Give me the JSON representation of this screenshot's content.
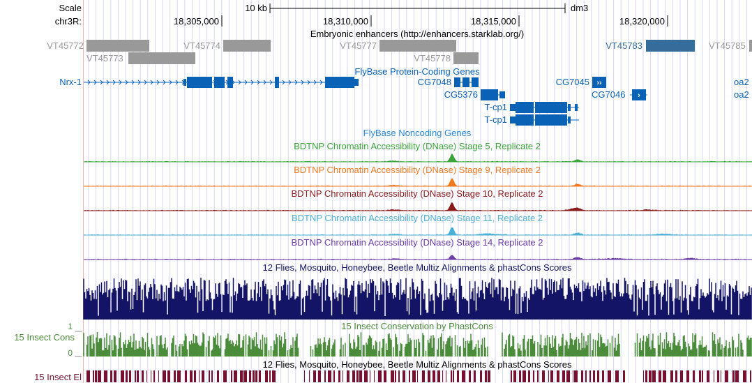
{
  "ruler": {
    "scale_label": "Scale",
    "scale_value": "10 kb",
    "assembly": "dm3",
    "chrom_label": "chr3R:",
    "positions": [
      "18,305,000",
      "18,310,000",
      "18,315,000",
      "18,320,000"
    ]
  },
  "colors": {
    "grid": "#d6d6f5",
    "left_line": "#f4b6b6",
    "enhancer_gray": "#999999",
    "enhancer_blue": "#346c9c",
    "gene_blue": "#0a62b7",
    "noncoding_blue": "#2a8ad6",
    "stage5": "#3aa43a",
    "stage9": "#f07a20",
    "stage10": "#8b1a1a",
    "stage11": "#4cb0d6",
    "stage14": "#6b3ca6",
    "multiz": "#141466",
    "phastcons": "#4a8c3a",
    "elements": "#7a1030"
  },
  "tracks": {
    "enhancers": {
      "title": "Embryonic enhancers (http://enhancers.starklab.org/)",
      "items": [
        {
          "label": "VT45772"
        },
        {
          "label": "VT45773"
        },
        {
          "label": "VT45774"
        },
        {
          "label": "VT45777"
        },
        {
          "label": "VT45778"
        },
        {
          "label": "VT45783"
        },
        {
          "label": "VT45785"
        }
      ]
    },
    "genes": {
      "title": "FlyBase Protein-Coding Genes",
      "items": [
        {
          "label": "Nrx-1"
        },
        {
          "label": "CG7048"
        },
        {
          "label": "CG5376"
        },
        {
          "label": "CG7045"
        },
        {
          "label": "CG7046"
        },
        {
          "label": "T-cp1"
        },
        {
          "label": "T-cp1"
        },
        {
          "label": "oa2"
        },
        {
          "label": "oa2"
        }
      ]
    },
    "noncoding": {
      "title": "FlyBase Noncoding Genes"
    },
    "dnase": [
      {
        "title": "BDTNP Chromatin Accessibility (DNase) Stage 5, Replicate 2",
        "color_key": "stage5"
      },
      {
        "title": "BDTNP Chromatin Accessibility (DNase) Stage 9, Replicate 2",
        "color_key": "stage9"
      },
      {
        "title": "BDTNP Chromatin Accessibility (DNase) Stage 10, Replicate 2",
        "color_key": "stage10"
      },
      {
        "title": "BDTNP Chromatin Accessibility (DNase) Stage 11, Replicate 2",
        "color_key": "stage11"
      },
      {
        "title": "BDTNP Chromatin Accessibility (DNase) Stage 14, Replicate 2",
        "color_key": "stage14"
      }
    ],
    "multiz": {
      "title": "12 Flies, Mosquito, Honeybee, Beetle Multiz Alignments & phastCons Scores"
    },
    "phastcons": {
      "title": "15 Insect Conservation by PhastCons",
      "side_label": "15 Insect Cons",
      "max_label": "1",
      "min_label": "0"
    },
    "elements": {
      "title": "12 Flies, Mosquito, Honeybee, Beetle Multiz Alignments & phastCons Scores",
      "side_label": "15 Insect El"
    }
  }
}
